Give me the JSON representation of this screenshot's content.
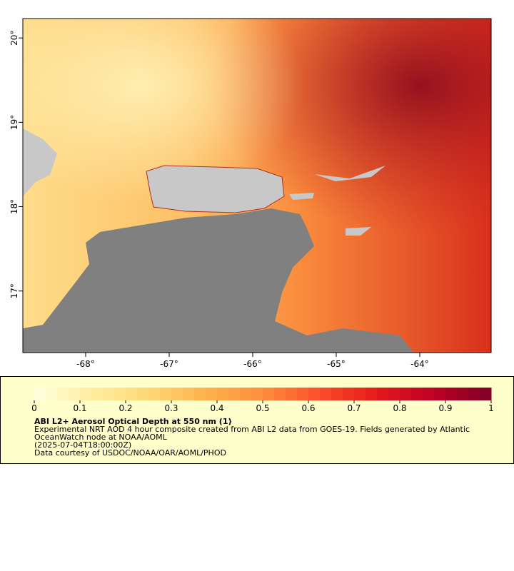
{
  "map": {
    "xlim": [
      -68.752,
      -63.145
    ],
    "ylim": [
      16.27,
      20.23
    ],
    "xticks": [
      {
        "value": -68,
        "label": "-68°"
      },
      {
        "value": -67,
        "label": "-67°"
      },
      {
        "value": -66,
        "label": "-66°"
      },
      {
        "value": -65,
        "label": "-65°"
      },
      {
        "value": -64,
        "label": "-64°"
      }
    ],
    "yticks": [
      {
        "value": 17,
        "label": "17°"
      },
      {
        "value": 18,
        "label": "18°"
      },
      {
        "value": 19,
        "label": "19°"
      },
      {
        "value": 20,
        "label": "20°"
      }
    ]
  },
  "colorbar": {
    "range": [
      0,
      1
    ],
    "ticks": [
      0,
      0.1,
      0.2,
      0.3,
      0.4,
      0.5,
      0.6,
      0.7,
      0.8,
      0.9,
      1
    ],
    "colors": [
      "#ffffe0",
      "#ffeda0",
      "#fed976",
      "#feb24c",
      "#fd8d3c",
      "#fc4e2a",
      "#e31a1c",
      "#bd0026",
      "#800026"
    ]
  },
  "legend": {
    "title": "ABI L2+ Aerosol Optical Depth at 550 nm (1)",
    "lines": [
      "Experimental NRT AOD 4 hour composite created from ABI L2 data from GOES-19. Fields generated by Atlantic",
      "OceanWatch node at NOAA/AOML",
      "(2025-07-04T18:00:00Z)",
      "Data courtesy of USDOC/NOAA/OAR/AOML/PHOD"
    ]
  }
}
